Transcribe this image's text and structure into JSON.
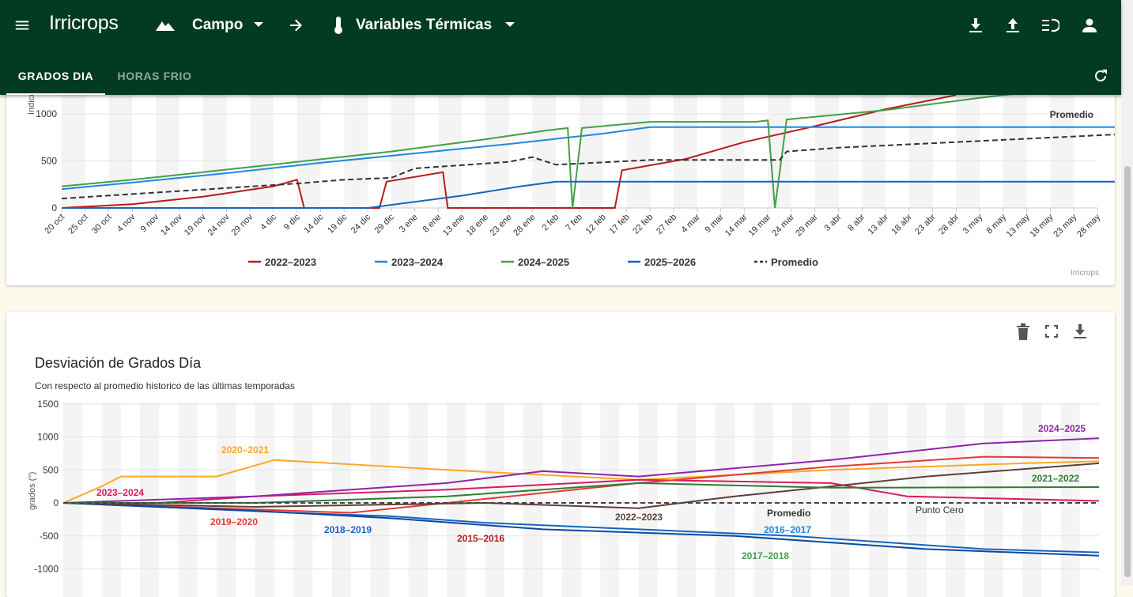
{
  "app": {
    "brand": "Irricrops"
  },
  "toolbar": {
    "field_selector": "Campo",
    "variable_selector": "Variables Térmicas"
  },
  "tabs": [
    {
      "label": "GRADOS DIA",
      "active": true
    },
    {
      "label": "HORAS FRIO",
      "active": false
    }
  ],
  "colors": {
    "appbar": "#033b22",
    "s2022": "#b71c1c",
    "s2023": "#1e88e5",
    "s2024": "#43a047",
    "s2025": "#1565c0",
    "avg": "#333333"
  },
  "chart1": {
    "credits": "Irricrops",
    "legend": [
      "2022–2023",
      "2023–2024",
      "2024–2025",
      "2025–2026",
      "Promedio"
    ],
    "promedio_label": "Promedio",
    "yaxis_label": "Indice"
  },
  "chart2": {
    "title": "Desviación de Grados Día",
    "subtitle": "Con respecto al promedio historico de las últimas temporadas",
    "yaxis_label": "grados (°)",
    "labels": {
      "l2020": "2020–2021",
      "l2023": "2023–2024",
      "l2019": "2019–2020",
      "l2018": "2018–2019",
      "l2015": "2015–2016",
      "l2022": "2022–2023",
      "lprom": "Promedio",
      "lcero": "Punto Cero",
      "l2016": "2016–2017",
      "l2017": "2017–2018",
      "l2024": "2024–2025",
      "l2021": "2021–2022"
    }
  },
  "chart_data": [
    {
      "type": "line",
      "title": "",
      "xlabel": "",
      "ylabel": "Indice",
      "x": [
        "20 oct",
        "25 oct",
        "30 oct",
        "4 nov",
        "9 nov",
        "14 nov",
        "19 nov",
        "24 nov",
        "29 nov",
        "4 dic",
        "9 dic",
        "14 dic",
        "19 dic",
        "24 dic",
        "29 dic",
        "3 ene",
        "8 ene",
        "13 ene",
        "18 ene",
        "23 ene",
        "28 ene",
        "2 feb",
        "7 feb",
        "12 feb",
        "17 feb",
        "22 feb",
        "27 feb",
        "4 mar",
        "9 mar",
        "14 mar",
        "19 mar",
        "24 mar",
        "29 mar",
        "3 abr",
        "8 abr",
        "13 abr",
        "18 abr",
        "23 abr",
        "28 abr",
        "3 may",
        "8 may",
        "13 may",
        "18 may",
        "23 may",
        "28 may"
      ],
      "yticks": [
        0,
        500,
        1000
      ],
      "ylim": [
        0,
        1200
      ],
      "legend_position": "bottom",
      "grid": true,
      "series": [
        {
          "name": "2022–2023",
          "points": [
            [
              0,
              0
            ],
            [
              3,
              40
            ],
            [
              6,
              120
            ],
            [
              9,
              230
            ],
            [
              10,
              300
            ],
            [
              10.3,
              0
            ],
            [
              13.5,
              0
            ],
            [
              13.8,
              280
            ],
            [
              16.2,
              380
            ],
            [
              16.4,
              0
            ],
            [
              23.5,
              0
            ],
            [
              23.8,
              400
            ],
            [
              26.5,
              520
            ],
            [
              29,
              700
            ],
            [
              32,
              870
            ],
            [
              35,
              1050
            ],
            [
              38,
              1200
            ]
          ]
        },
        {
          "name": "2023–2024",
          "points": [
            [
              0,
              200
            ],
            [
              3,
              270
            ],
            [
              7,
              370
            ],
            [
              11,
              480
            ],
            [
              15,
              580
            ],
            [
              19,
              680
            ],
            [
              23,
              790
            ],
            [
              25,
              860
            ],
            [
              37,
              860
            ],
            [
              55,
              860
            ],
            [
              63,
              860
            ]
          ]
        },
        {
          "name": "2024–2025",
          "points": [
            [
              0,
              230
            ],
            [
              3,
              300
            ],
            [
              6,
              380
            ],
            [
              10,
              490
            ],
            [
              14,
              600
            ],
            [
              18,
              730
            ],
            [
              20.5,
              820
            ],
            [
              21.5,
              850
            ],
            [
              21.7,
              0
            ],
            [
              22.1,
              850
            ],
            [
              25,
              915
            ],
            [
              29.5,
              915
            ],
            [
              30,
              930
            ],
            [
              30.3,
              0
            ],
            [
              30.8,
              940
            ],
            [
              35,
              1040
            ],
            [
              39,
              1170
            ],
            [
              41,
              1230
            ]
          ]
        },
        {
          "name": "2025–2026",
          "points": [
            [
              0,
              0
            ],
            [
              13,
              0
            ],
            [
              17,
              130
            ],
            [
              19.5,
              230
            ],
            [
              21,
              280
            ],
            [
              30,
              280
            ],
            [
              45,
              280
            ],
            [
              63,
              280
            ]
          ]
        },
        {
          "name": "Promedio",
          "points": [
            [
              0,
              100
            ],
            [
              5,
              180
            ],
            [
              10,
              260
            ],
            [
              12,
              300
            ],
            [
              14,
              320
            ],
            [
              15,
              420
            ],
            [
              19,
              490
            ],
            [
              20,
              540
            ],
            [
              21,
              460
            ],
            [
              25,
              510
            ],
            [
              28,
              510
            ],
            [
              30.5,
              510
            ],
            [
              30.8,
              600
            ],
            [
              33,
              640
            ],
            [
              38,
              700
            ],
            [
              43,
              760
            ],
            [
              48,
              820
            ],
            [
              53,
              890
            ],
            [
              58,
              950
            ],
            [
              61,
              1000
            ],
            [
              61.3,
              620
            ],
            [
              61.7,
              1060
            ],
            [
              63,
              1090
            ]
          ]
        }
      ]
    },
    {
      "type": "line",
      "title": "Desviación de Grados Día",
      "subtitle": "Con respecto al promedio historico de las últimas temporadas",
      "ylabel": "grados (°)",
      "yticks": [
        -1000,
        -500,
        0,
        500,
        1000,
        1500
      ],
      "ylim": [
        -1000,
        1500
      ],
      "grid": true,
      "series": [
        {
          "name": "2020–2021",
          "points": [
            [
              0,
              0
            ],
            [
              2,
              250
            ],
            [
              3,
              400
            ],
            [
              8,
              400
            ],
            [
              11,
              650
            ],
            [
              20,
              500
            ],
            [
              30,
              350
            ],
            [
              40,
              500
            ],
            [
              50,
              600
            ],
            [
              54,
              630
            ]
          ]
        },
        {
          "name": "2023–2024",
          "points": [
            [
              0,
              0
            ],
            [
              5,
              0
            ],
            [
              10,
              100
            ],
            [
              20,
              200
            ],
            [
              30,
              350
            ],
            [
              40,
              300
            ],
            [
              44,
              100
            ],
            [
              54,
              30
            ]
          ]
        },
        {
          "name": "2019–2020",
          "points": [
            [
              0,
              0
            ],
            [
              10,
              -100
            ],
            [
              15,
              -150
            ],
            [
              20,
              0
            ],
            [
              30,
              300
            ],
            [
              40,
              550
            ],
            [
              48,
              700
            ],
            [
              54,
              680
            ]
          ]
        },
        {
          "name": "2018–2019",
          "points": [
            [
              0,
              0
            ],
            [
              12,
              -150
            ],
            [
              17,
              -200
            ],
            [
              22,
              -300
            ],
            [
              30,
              -400
            ],
            [
              38,
              -500
            ],
            [
              48,
              -700
            ],
            [
              54,
              -750
            ]
          ]
        },
        {
          "name": "2015–2016",
          "points": [
            [
              0,
              0
            ],
            [
              10,
              -120
            ],
            [
              17,
              -230
            ],
            [
              25,
              -400
            ],
            [
              35,
              -500
            ],
            [
              45,
              -700
            ],
            [
              54,
              -800
            ]
          ]
        },
        {
          "name": "2022–2023",
          "points": [
            [
              0,
              0
            ],
            [
              10,
              -60
            ],
            [
              22,
              0
            ],
            [
              30,
              -80
            ],
            [
              35,
              100
            ],
            [
              45,
              400
            ],
            [
              54,
              600
            ]
          ]
        },
        {
          "name": "2024–2025",
          "points": [
            [
              0,
              0
            ],
            [
              10,
              100
            ],
            [
              20,
              300
            ],
            [
              25,
              480
            ],
            [
              30,
              400
            ],
            [
              40,
              650
            ],
            [
              48,
              900
            ],
            [
              54,
              980
            ]
          ]
        },
        {
          "name": "2021–2022",
          "points": [
            [
              0,
              0
            ],
            [
              10,
              0
            ],
            [
              20,
              100
            ],
            [
              30,
              300
            ],
            [
              40,
              230
            ],
            [
              54,
              240
            ]
          ]
        },
        {
          "name": "Promedio",
          "points": [
            [
              0,
              0
            ],
            [
              54,
              0
            ]
          ]
        }
      ]
    }
  ]
}
